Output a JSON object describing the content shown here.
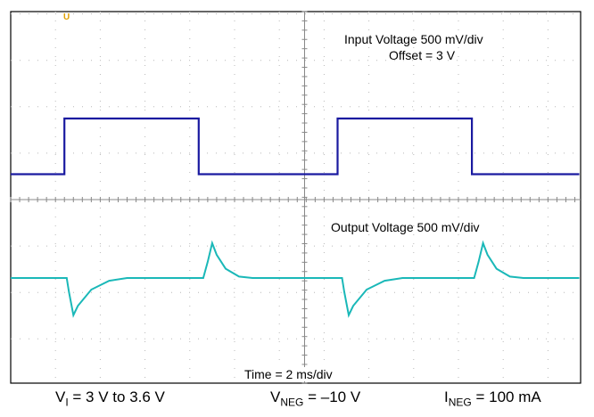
{
  "chart_data": {
    "type": "line",
    "x": {
      "divisions": 10,
      "scale": "2 ms/div"
    },
    "y": {
      "divisions": 8
    },
    "grid": true,
    "trigger_marker": "U",
    "series": [
      {
        "name": "Input Voltage",
        "scale": "500 mV/div",
        "offset": "Offset = 3 V",
        "color": "#1a1aa0",
        "values_div": [
          [
            0,
            -1.2
          ],
          [
            1.2,
            -1.2
          ],
          [
            1.2,
            -0.0
          ],
          [
            4.2,
            -0.0
          ],
          [
            4.2,
            -1.2
          ],
          [
            7.3,
            -1.2
          ],
          [
            7.3,
            -0.0
          ],
          [
            10.3,
            -0.0
          ],
          [
            10.3,
            -1.2
          ],
          [
            12.7,
            -1.2
          ]
        ]
      },
      {
        "name": "Output Voltage",
        "scale": "500 mV/div",
        "color": "#1ab8b8",
        "values_div": [
          [
            0,
            0
          ],
          [
            1.25,
            0
          ],
          [
            1.3,
            -0.3
          ],
          [
            1.4,
            -0.8
          ],
          [
            1.5,
            -0.6
          ],
          [
            1.8,
            -0.25
          ],
          [
            2.2,
            -0.06
          ],
          [
            2.6,
            0
          ],
          [
            4.3,
            0
          ],
          [
            4.4,
            0.35
          ],
          [
            4.5,
            0.75
          ],
          [
            4.6,
            0.5
          ],
          [
            4.8,
            0.2
          ],
          [
            5.1,
            0.03
          ],
          [
            5.4,
            0
          ],
          [
            7.4,
            0
          ],
          [
            7.45,
            -0.3
          ],
          [
            7.55,
            -0.8
          ],
          [
            7.65,
            -0.6
          ],
          [
            7.95,
            -0.25
          ],
          [
            8.35,
            -0.06
          ],
          [
            8.75,
            0
          ],
          [
            10.35,
            0
          ],
          [
            10.45,
            0.35
          ],
          [
            10.55,
            0.75
          ],
          [
            10.65,
            0.5
          ],
          [
            10.85,
            0.2
          ],
          [
            11.15,
            0.03
          ],
          [
            11.45,
            0
          ],
          [
            12.7,
            0
          ]
        ]
      }
    ],
    "annotations": {
      "input_title": "Input Voltage 500 mV/div",
      "input_offset": "Offset = 3 V",
      "output_title": "Output Voltage 500 mV/div",
      "time_scale": "Time = 2 ms/div"
    }
  },
  "caption": {
    "vi": {
      "main": "V",
      "sub": "I",
      "rest": " = 3 V to 3.6 V"
    },
    "vneg": {
      "main": "V",
      "sub": "NEG",
      "rest": " = –10 V"
    },
    "ineg": {
      "main": "I",
      "sub": "NEG",
      "rest": " = 100 mA"
    }
  }
}
